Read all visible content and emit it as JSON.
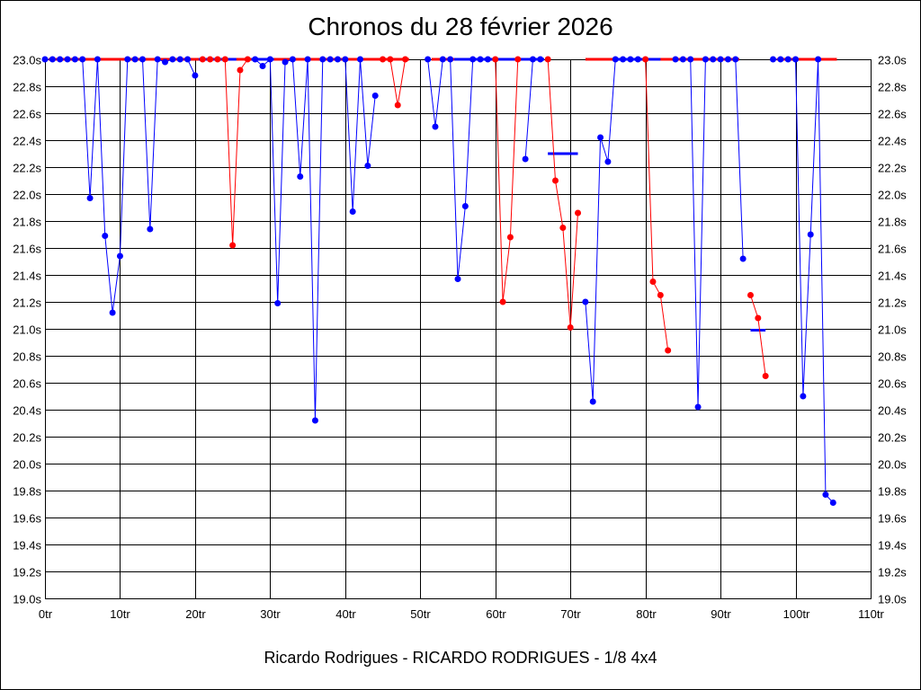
{
  "chart_data": {
    "type": "line",
    "title": "Chronos du 28 février 2026",
    "subtitle": "Ricardo Rodrigues - RICARDO RODRIGUES - 1/8 4x4",
    "xlim": [
      0,
      110
    ],
    "ylim": [
      19.0,
      23.0
    ],
    "x_tick_step": 10,
    "y_tick_step": 0.2,
    "x_tick_suffix": "tr",
    "y_tick_suffix": "s",
    "grid": true,
    "legend": "none",
    "colors": {
      "blue": "#0000ff",
      "red": "#ff0000",
      "axis": "#000000"
    },
    "series": [
      {
        "color": "#0000ff",
        "points": [
          [
            0,
            23.0
          ],
          [
            1,
            23.0
          ],
          [
            2,
            23.0
          ],
          [
            3,
            23.0
          ],
          [
            4,
            23.0
          ],
          [
            5,
            23.0
          ],
          [
            6,
            21.97
          ],
          [
            7,
            23.0
          ],
          [
            8,
            21.69
          ],
          [
            9,
            21.12
          ],
          [
            10,
            21.54
          ],
          [
            11,
            23.0
          ],
          [
            12,
            23.0
          ],
          [
            13,
            23.0
          ],
          [
            14,
            21.74
          ],
          [
            15,
            23.0
          ],
          [
            16,
            22.98
          ],
          [
            17,
            23.0
          ],
          [
            18,
            23.0
          ],
          [
            19,
            23.0
          ],
          [
            20,
            22.88
          ]
        ]
      },
      {
        "color": "#ff0000",
        "points": [
          [
            21,
            23.0
          ],
          [
            22,
            23.0
          ],
          [
            23,
            23.0
          ],
          [
            24,
            23.0
          ],
          [
            25,
            21.62
          ],
          [
            26,
            22.92
          ],
          [
            27,
            23.0
          ]
        ]
      },
      {
        "color": "#0000ff",
        "points": [
          [
            28,
            23.0
          ],
          [
            29,
            22.95
          ],
          [
            30,
            23.0
          ],
          [
            31,
            21.19
          ],
          [
            32,
            22.98
          ],
          [
            33,
            23.0
          ],
          [
            34,
            22.13
          ],
          [
            35,
            23.0
          ],
          [
            36,
            20.32
          ],
          [
            37,
            23.0
          ],
          [
            38,
            23.0
          ],
          [
            39,
            23.0
          ],
          [
            40,
            23.0
          ],
          [
            41,
            21.87
          ],
          [
            42,
            23.0
          ],
          [
            43,
            22.21
          ],
          [
            44,
            22.73
          ]
        ]
      },
      {
        "color": "#ff0000",
        "points": [
          [
            45,
            23.0
          ],
          [
            46,
            23.0
          ],
          [
            47,
            22.66
          ],
          [
            48,
            23.0
          ]
        ]
      },
      {
        "color": "#0000ff",
        "points": [
          [
            51,
            23.0
          ],
          [
            52,
            22.5
          ],
          [
            53,
            23.0
          ],
          [
            54,
            23.0
          ],
          [
            55,
            21.37
          ],
          [
            56,
            21.91
          ],
          [
            57,
            23.0
          ],
          [
            58,
            23.0
          ],
          [
            59,
            23.0
          ]
        ]
      },
      {
        "color": "#ff0000",
        "points": [
          [
            60,
            23.0
          ],
          [
            61,
            21.2
          ],
          [
            62,
            21.68
          ],
          [
            63,
            23.0
          ]
        ]
      },
      {
        "color": "#0000ff",
        "points": [
          [
            64,
            22.26
          ],
          [
            65,
            23.0
          ],
          [
            66,
            23.0
          ]
        ]
      },
      {
        "color": "#ff0000",
        "points": [
          [
            67,
            23.0
          ],
          [
            68,
            22.1
          ],
          [
            69,
            21.75
          ],
          [
            70,
            21.01
          ],
          [
            71,
            21.86
          ]
        ]
      },
      {
        "color": "#0000ff",
        "points": [
          [
            72,
            21.2
          ],
          [
            73,
            20.46
          ],
          [
            74,
            22.42
          ],
          [
            75,
            22.24
          ],
          [
            76,
            23.0
          ],
          [
            77,
            23.0
          ],
          [
            78,
            23.0
          ],
          [
            79,
            23.0
          ]
        ]
      },
      {
        "color": "#ff0000",
        "points": [
          [
            80,
            23.0
          ],
          [
            81,
            21.35
          ],
          [
            82,
            21.25
          ],
          [
            83,
            20.84
          ]
        ]
      },
      {
        "color": "#0000ff",
        "points": [
          [
            84,
            23.0
          ],
          [
            85,
            23.0
          ],
          [
            86,
            23.0
          ],
          [
            87,
            20.42
          ],
          [
            88,
            23.0
          ],
          [
            89,
            23.0
          ],
          [
            90,
            23.0
          ],
          [
            91,
            23.0
          ],
          [
            92,
            23.0
          ],
          [
            93,
            21.52
          ]
        ]
      },
      {
        "color": "#ff0000",
        "points": [
          [
            94,
            21.25
          ],
          [
            95,
            21.08
          ],
          [
            96,
            20.65
          ]
        ]
      },
      {
        "color": "#0000ff",
        "points": [
          [
            97,
            23.0
          ],
          [
            98,
            23.0
          ],
          [
            99,
            23.0
          ],
          [
            100,
            23.0
          ],
          [
            101,
            20.5
          ],
          [
            102,
            21.7
          ],
          [
            103,
            23.0
          ],
          [
            104,
            19.77
          ],
          [
            105,
            19.71
          ]
        ]
      }
    ],
    "average_lines": [
      {
        "color": "#ff0000",
        "x_start": 0.5,
        "x_end": 27.5,
        "y": 23.0
      },
      {
        "color": "#0000ff",
        "x_start": 20.5,
        "x_end": 25.5,
        "y": 23.0
      },
      {
        "color": "#0000ff",
        "x_start": 27.5,
        "x_end": 44.5,
        "y": 23.0
      },
      {
        "color": "#ff0000",
        "x_start": 30.5,
        "x_end": 48.5,
        "y": 23.0
      },
      {
        "color": "#ff0000",
        "x_start": 51.5,
        "x_end": 63.5,
        "y": 23.0
      },
      {
        "color": "#0000ff",
        "x_start": 54.5,
        "x_end": 66.5,
        "y": 23.0
      },
      {
        "color": "#0000ff",
        "x_start": 67.0,
        "x_end": 71.0,
        "y": 22.3
      },
      {
        "color": "#ff0000",
        "x_start": 72.0,
        "x_end": 83.5,
        "y": 23.0
      },
      {
        "color": "#0000ff",
        "x_start": 76.0,
        "x_end": 89.0,
        "y": 23.0
      },
      {
        "color": "#ff0000",
        "x_start": 82.0,
        "x_end": 92.5,
        "y": 23.0
      },
      {
        "color": "#0000ff",
        "x_start": 94.0,
        "x_end": 96.0,
        "y": 20.99
      },
      {
        "color": "#ff0000",
        "x_start": 97.5,
        "x_end": 105.5,
        "y": 23.0
      }
    ]
  }
}
